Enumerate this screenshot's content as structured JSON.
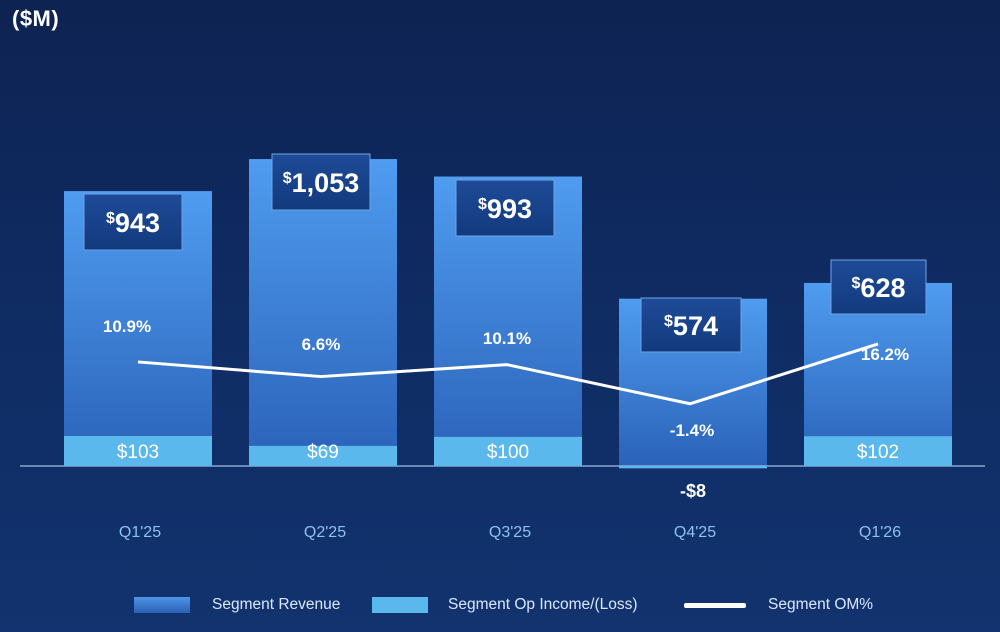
{
  "unit_label": "($M)",
  "chart_data": {
    "type": "bar",
    "title": "",
    "unit": "$M",
    "categories": [
      "Q1'25",
      "Q2'25",
      "Q3'25",
      "Q4'25",
      "Q1'26"
    ],
    "series": [
      {
        "name": "Segment Revenue",
        "kind": "bar",
        "values": [
          943,
          1053,
          993,
          574,
          628
        ],
        "labels": [
          "943",
          "1,053",
          "993",
          "574",
          "628"
        ],
        "color": "#3b7fd6"
      },
      {
        "name": "Segment Op Income/(Loss)",
        "kind": "bar",
        "values": [
          103,
          69,
          100,
          -8,
          102
        ],
        "labels": [
          "$103",
          "$69",
          "$100",
          "-$8",
          "$102"
        ],
        "color": "#5bb8ec"
      },
      {
        "name": "Segment OM%",
        "kind": "line",
        "values": [
          10.9,
          6.6,
          10.1,
          -1.4,
          16.2
        ],
        "labels": [
          "10.9%",
          "6.6%",
          "10.1%",
          "-1.4%",
          "16.2%"
        ],
        "color": "#ffffff"
      }
    ],
    "legend": {
      "position": "bottom",
      "items": [
        "Segment Revenue",
        "Segment Op Income/(Loss)",
        "Segment OM%"
      ]
    }
  }
}
